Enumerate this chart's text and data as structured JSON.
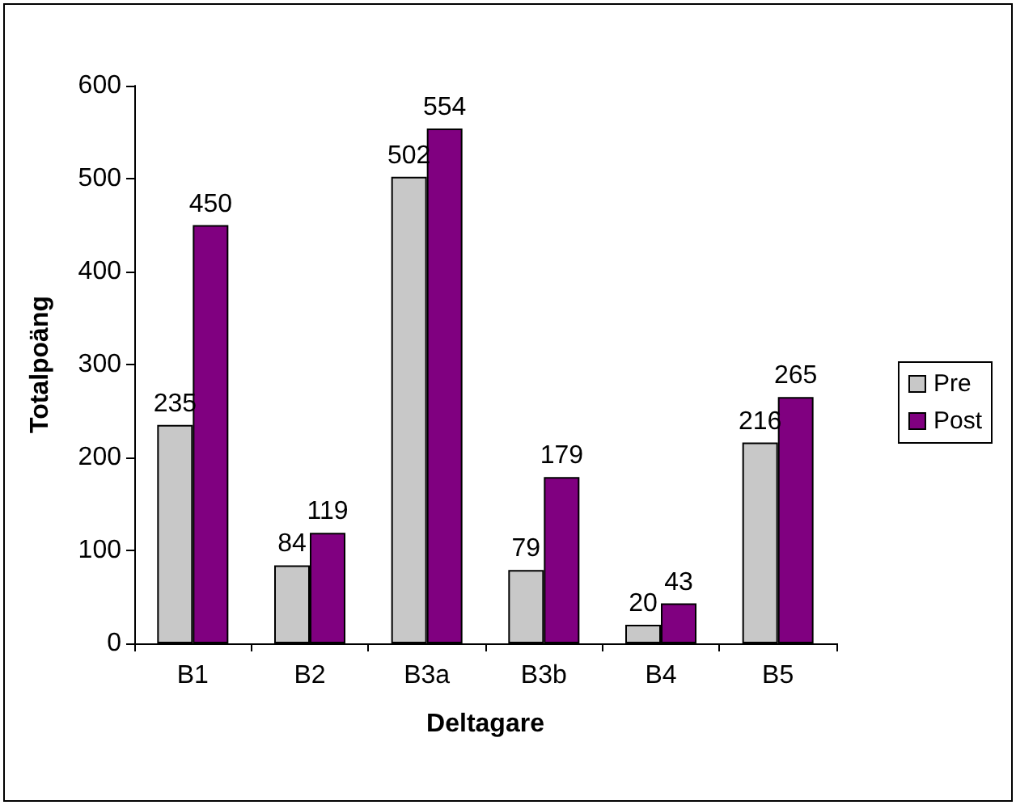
{
  "chart_data": {
    "type": "bar",
    "xlabel": "Deltagare",
    "ylabel": "Totalpoäng",
    "categories": [
      "B1",
      "B2",
      "B3a",
      "B3b",
      "B4",
      "B5"
    ],
    "series": [
      {
        "name": "Pre",
        "color": "#c8c8c8",
        "values": [
          235,
          84,
          502,
          79,
          20,
          216
        ]
      },
      {
        "name": "Post",
        "color": "#800080",
        "values": [
          450,
          119,
          554,
          179,
          43,
          265
        ]
      }
    ],
    "ylim": [
      0,
      600
    ],
    "yticks": [
      0,
      100,
      200,
      300,
      400,
      500,
      600
    ],
    "grid": false,
    "legend": "right",
    "data_labels": true
  }
}
